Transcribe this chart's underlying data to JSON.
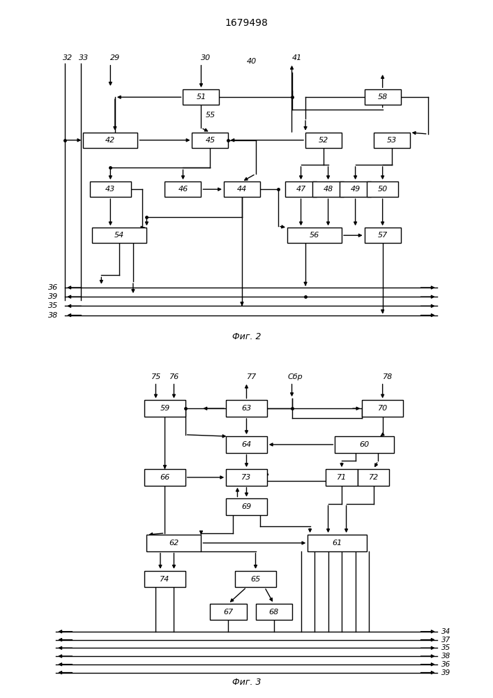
{
  "title": "1679498",
  "fig2_caption": "Фиг. 2",
  "fig3_caption": "Фиг. 3"
}
